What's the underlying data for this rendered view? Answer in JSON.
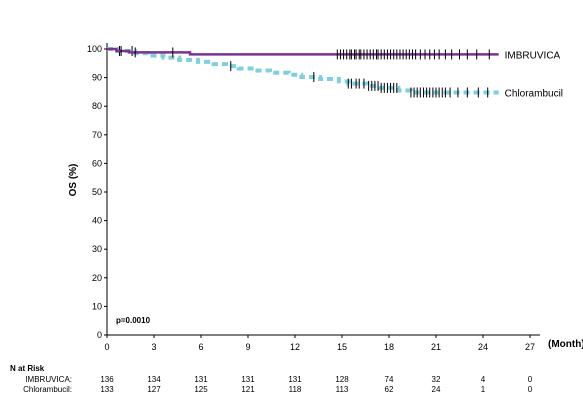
{
  "chart_data": {
    "type": "line",
    "ylabel": "OS (%)",
    "xlabel": "(Month)",
    "xlim": [
      0,
      27
    ],
    "ylim": [
      0,
      100
    ],
    "xticks": [
      0,
      3,
      6,
      9,
      12,
      15,
      18,
      21,
      24,
      27
    ],
    "yticks": [
      0,
      10,
      20,
      30,
      40,
      50,
      60,
      70,
      80,
      90,
      100
    ],
    "p_value": "p=0.0010",
    "series": [
      {
        "name": "IMBRUVICA",
        "color": "#7b3294",
        "style": "solid",
        "steps": [
          [
            0,
            100
          ],
          [
            0.6,
            99.3
          ],
          [
            1.4,
            99.3
          ],
          [
            1.4,
            98.8
          ],
          [
            4.3,
            98.8
          ],
          [
            5.3,
            98.1
          ],
          [
            25,
            98.1
          ]
        ],
        "censor_marks": [
          0.9,
          1.8,
          4.2,
          14.7,
          14.9,
          15.1,
          15.3,
          15.5,
          15.6,
          15.8,
          15.9,
          16.1,
          16.2,
          16.4,
          16.6,
          16.8,
          17.0,
          17.2,
          17.3,
          17.5,
          17.7,
          17.9,
          18.1,
          18.3,
          18.5,
          18.7,
          18.9,
          19.1,
          19.3,
          19.5,
          19.7,
          20.0,
          20.3,
          20.6,
          20.9,
          21.2,
          21.6,
          22.0,
          22.5,
          23.0,
          23.6,
          24.4
        ]
      },
      {
        "name": "Chlorambucil",
        "color": "#7fcfe0",
        "style": "dashed",
        "steps": [
          [
            0,
            100
          ],
          [
            0.7,
            99.3
          ],
          [
            1.8,
            98.5
          ],
          [
            2.6,
            97.7
          ],
          [
            3.6,
            97.0
          ],
          [
            4.6,
            96.2
          ],
          [
            5.8,
            95.5
          ],
          [
            6.8,
            94.7
          ],
          [
            7.6,
            94.0
          ],
          [
            8.4,
            93.2
          ],
          [
            9.6,
            92.5
          ],
          [
            10.4,
            91.7
          ],
          [
            11.6,
            91.0
          ],
          [
            12.4,
            90.2
          ],
          [
            13.6,
            89.5
          ],
          [
            14.8,
            88.7
          ],
          [
            15.4,
            87.9
          ],
          [
            16.6,
            87.1
          ],
          [
            17.4,
            86.4
          ],
          [
            18.6,
            85.5
          ],
          [
            19.4,
            84.8
          ],
          [
            25,
            84.8
          ]
        ],
        "censor_marks": [
          0.8,
          1.6,
          7.9,
          13.2,
          15.4,
          15.6,
          15.9,
          16.1,
          16.4,
          16.7,
          16.9,
          17.1,
          17.3,
          17.5,
          17.7,
          17.9,
          18.1,
          18.3,
          18.5,
          19.4,
          19.6,
          19.8,
          20.0,
          20.2,
          20.4,
          20.6,
          20.8,
          21.0,
          21.2,
          21.4,
          21.6,
          21.9,
          22.4,
          23.0,
          23.7,
          24.3
        ]
      }
    ]
  },
  "risk_table": {
    "title": "N at Risk",
    "timepoints": [
      0,
      3,
      6,
      9,
      12,
      15,
      18,
      21,
      24,
      27
    ],
    "rows": [
      {
        "label": "IMBRUVICA:",
        "values": [
          "136",
          "134",
          "131",
          "131",
          "131",
          "128",
          "74",
          "32",
          "4",
          "0"
        ]
      },
      {
        "label": "Chlorambucil:",
        "values": [
          "133",
          "127",
          "125",
          "121",
          "118",
          "113",
          "62",
          "24",
          "1",
          "0"
        ]
      }
    ]
  }
}
